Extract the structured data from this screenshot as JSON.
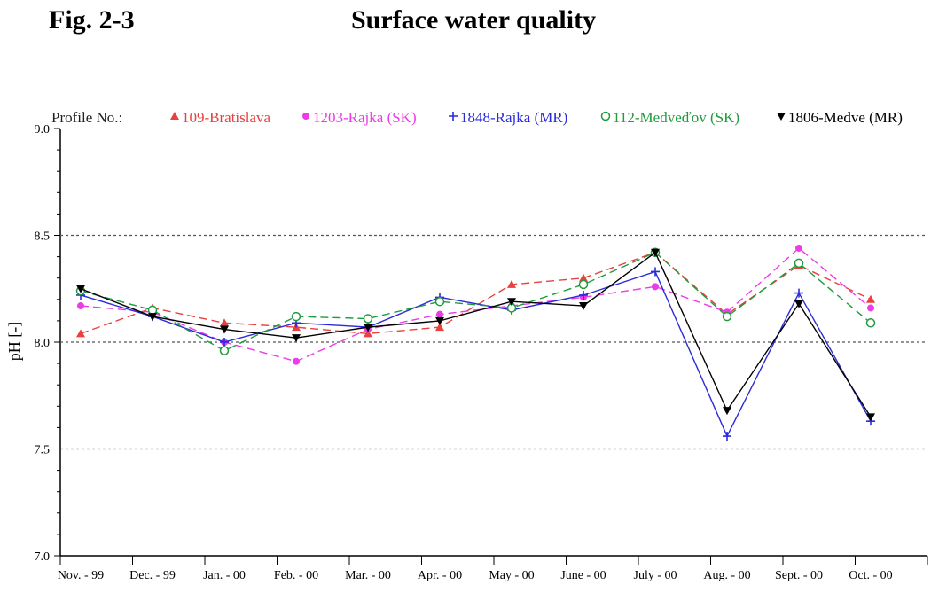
{
  "figure": {
    "label": "Fig. 2-3",
    "title": "Surface water quality"
  },
  "legend": {
    "prefix": "Profile No.:"
  },
  "chart_data": {
    "type": "line",
    "ylabel": "pH [-]",
    "xlabel": "",
    "ylim": [
      7.0,
      9.0
    ],
    "yticks": [
      "7.0",
      "7.5",
      "8.0",
      "8.5",
      "9.0"
    ],
    "reference_lines": [
      7.5,
      8.0,
      8.5
    ],
    "categories": [
      "Nov. - 99",
      "Dec. - 99",
      "Jan. - 00",
      "Feb. - 00",
      "Mar. - 00",
      "Apr. - 00",
      "May - 00",
      "June - 00",
      "July - 00",
      "Aug. - 00",
      "Sept. - 00",
      "Oct. - 00"
    ],
    "legend_position": "top",
    "series": [
      {
        "name": "109-Bratislava",
        "color": "#e8413f",
        "dash": "dashed",
        "marker": "triangle-up",
        "values": [
          8.04,
          8.16,
          8.09,
          8.07,
          8.04,
          8.07,
          8.27,
          8.3,
          8.42,
          8.13,
          8.36,
          8.2
        ]
      },
      {
        "name": "1203-Rajka (SK)",
        "color": "#ee3ae8",
        "dash": "dashed",
        "marker": "filled-circle",
        "values": [
          8.17,
          8.14,
          8.0,
          7.91,
          8.06,
          8.13,
          8.17,
          8.21,
          8.26,
          8.14,
          8.44,
          8.16
        ]
      },
      {
        "name": "1848-Rajka (MR)",
        "color": "#2b2bd9",
        "dash": "solid",
        "marker": "plus",
        "values": [
          8.22,
          8.12,
          8.0,
          8.09,
          8.07,
          8.21,
          8.15,
          8.22,
          8.33,
          7.56,
          8.23,
          7.63
        ]
      },
      {
        "name": "112-Medveďov (SK)",
        "color": "#1f9a3c",
        "dash": "dashed",
        "marker": "open-circle",
        "values": [
          8.24,
          8.15,
          7.96,
          8.12,
          8.11,
          8.19,
          8.16,
          8.27,
          8.42,
          8.12,
          8.37,
          8.09
        ]
      },
      {
        "name": "1806-Medve (MR)",
        "color": "#000000",
        "dash": "solid",
        "marker": "triangle-down",
        "values": [
          8.25,
          8.12,
          8.06,
          8.02,
          8.07,
          8.1,
          8.19,
          8.17,
          8.42,
          7.68,
          8.18,
          7.65
        ]
      }
    ]
  }
}
